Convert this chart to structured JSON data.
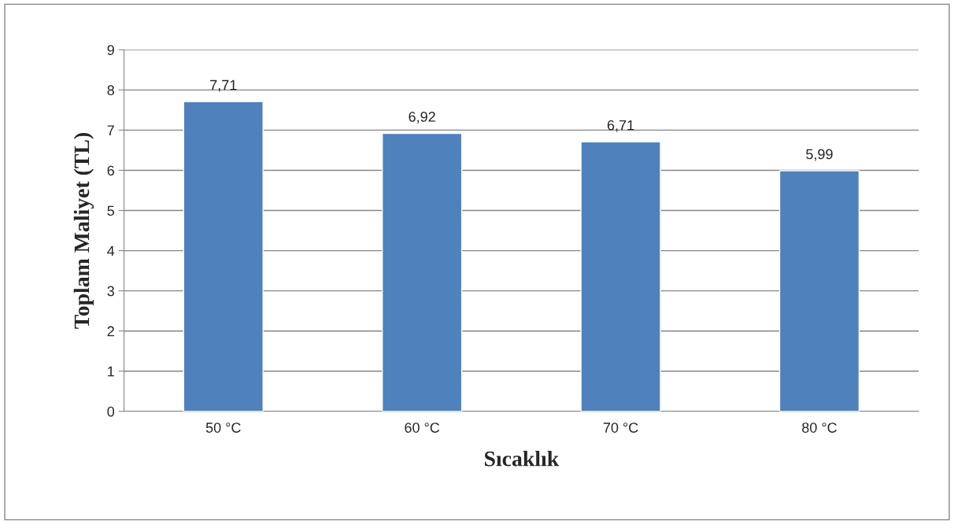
{
  "chart_data": {
    "type": "bar",
    "xlabel": "Sıcaklık",
    "ylabel": "Toplam Maliyet (TL)",
    "categories": [
      "50 °C",
      "60 °C",
      "70 °C",
      "80 °C"
    ],
    "values": [
      7.71,
      6.92,
      6.71,
      5.99
    ],
    "value_labels": [
      "7,71",
      "6,92",
      "6,71",
      "5,99"
    ],
    "color": "#4f81bd",
    "ylim": [
      0,
      9
    ],
    "yticks": [
      0,
      1,
      2,
      3,
      4,
      5,
      6,
      7,
      8,
      9
    ],
    "grid": "y",
    "legend": false
  }
}
